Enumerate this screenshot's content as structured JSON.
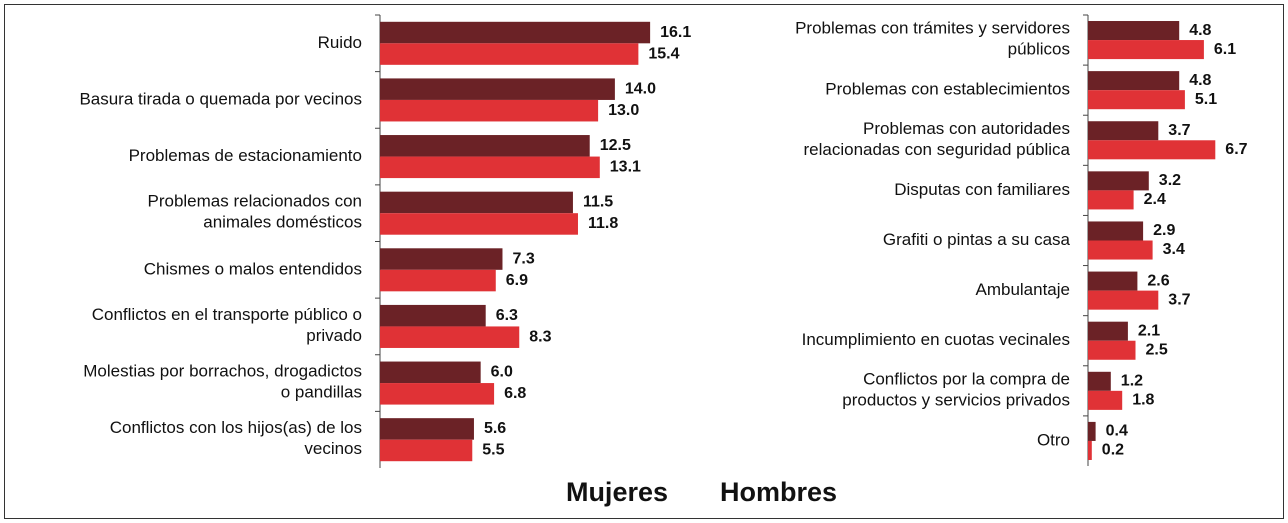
{
  "chart_data": [
    {
      "type": "barh",
      "categories": [
        "Ruido",
        "Basura tirada o quemada por vecinos",
        "Problemas de estacionamiento",
        "Problemas relacionados con\nanimales domésticos",
        "Chismes o malos entendidos",
        "Conflictos en el transporte público o\nprivado",
        "Molestias por borrachos, drogadictos\no pandillas",
        "Conflictos con los hijos(as) de los\nvecinos"
      ],
      "series": [
        {
          "name": "Mujeres",
          "color": "#6b2226",
          "values": [
            16.1,
            14,
            12.5,
            11.5,
            7.3,
            6.3,
            6,
            5.6
          ],
          "value_labels": [
            "16.1",
            "14.0",
            "12.5",
            "11.5",
            "7.3",
            "6.3",
            "6.0",
            "5.6"
          ]
        },
        {
          "name": "Hombres",
          "color": "#e03236",
          "values": [
            15.4,
            13,
            13.1,
            11.8,
            6.9,
            8.3,
            6.8,
            5.5
          ],
          "value_labels": [
            "15.4",
            "13.0",
            "13.1",
            "11.8",
            "6.9",
            "8.3",
            "6.8",
            "5.5"
          ]
        }
      ],
      "xlim": [
        0,
        18
      ]
    },
    {
      "type": "barh",
      "categories": [
        "Problemas con trámites y servidores\npúblicos",
        "Problemas con establecimientos",
        "Problemas con autoridades\nrelacionadas con seguridad pública",
        "Disputas con familiares",
        "Grafiti o pintas a su casa",
        "Ambulantaje",
        "Incumplimiento en cuotas vecinales",
        "Conflictos por la compra de\nproductos y servicios privados",
        "Otro"
      ],
      "series": [
        {
          "color": "#6b2226",
          "values": [
            4.8,
            4.8,
            3.7,
            3.2,
            2.9,
            2.6,
            2.1,
            1.2,
            0.4
          ],
          "value_labels": [
            "4.8",
            "4.8",
            "3.7",
            "3.2",
            "2.9",
            "2.6",
            "2.1",
            "1.2",
            "0.4"
          ]
        },
        {
          "color": "#e03236",
          "values": [
            6.1,
            5.1,
            6.7,
            2.4,
            3.4,
            3.7,
            2.5,
            1.8,
            0.2
          ],
          "value_labels": [
            "6.1",
            "5.1",
            "6.7",
            "2.4",
            "3.4",
            "3.7",
            "2.5",
            "1.8",
            "0.2"
          ]
        }
      ],
      "xlim": [
        0,
        10
      ]
    }
  ]
}
